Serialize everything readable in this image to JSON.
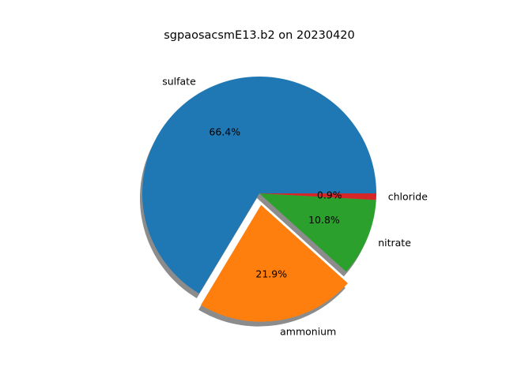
{
  "chart_data": {
    "type": "pie",
    "title": "sgpaosacsmE13.b2 on 20230420",
    "slices": [
      {
        "label": "sulfate",
        "percent": 66.4,
        "pct_text": "66.4%",
        "color": "#1f77b4",
        "explode": 0
      },
      {
        "label": "ammonium",
        "percent": 21.9,
        "pct_text": "21.9%",
        "color": "#ff7f0e",
        "explode": 0.1
      },
      {
        "label": "nitrate",
        "percent": 10.8,
        "pct_text": "10.8%",
        "color": "#2ca02c",
        "explode": 0
      },
      {
        "label": "chloride",
        "percent": 0.9,
        "pct_text": "0.9%",
        "color": "#d62728",
        "explode": 0
      }
    ],
    "start_angle_deg": 0,
    "shadow": true,
    "legend": "none"
  }
}
